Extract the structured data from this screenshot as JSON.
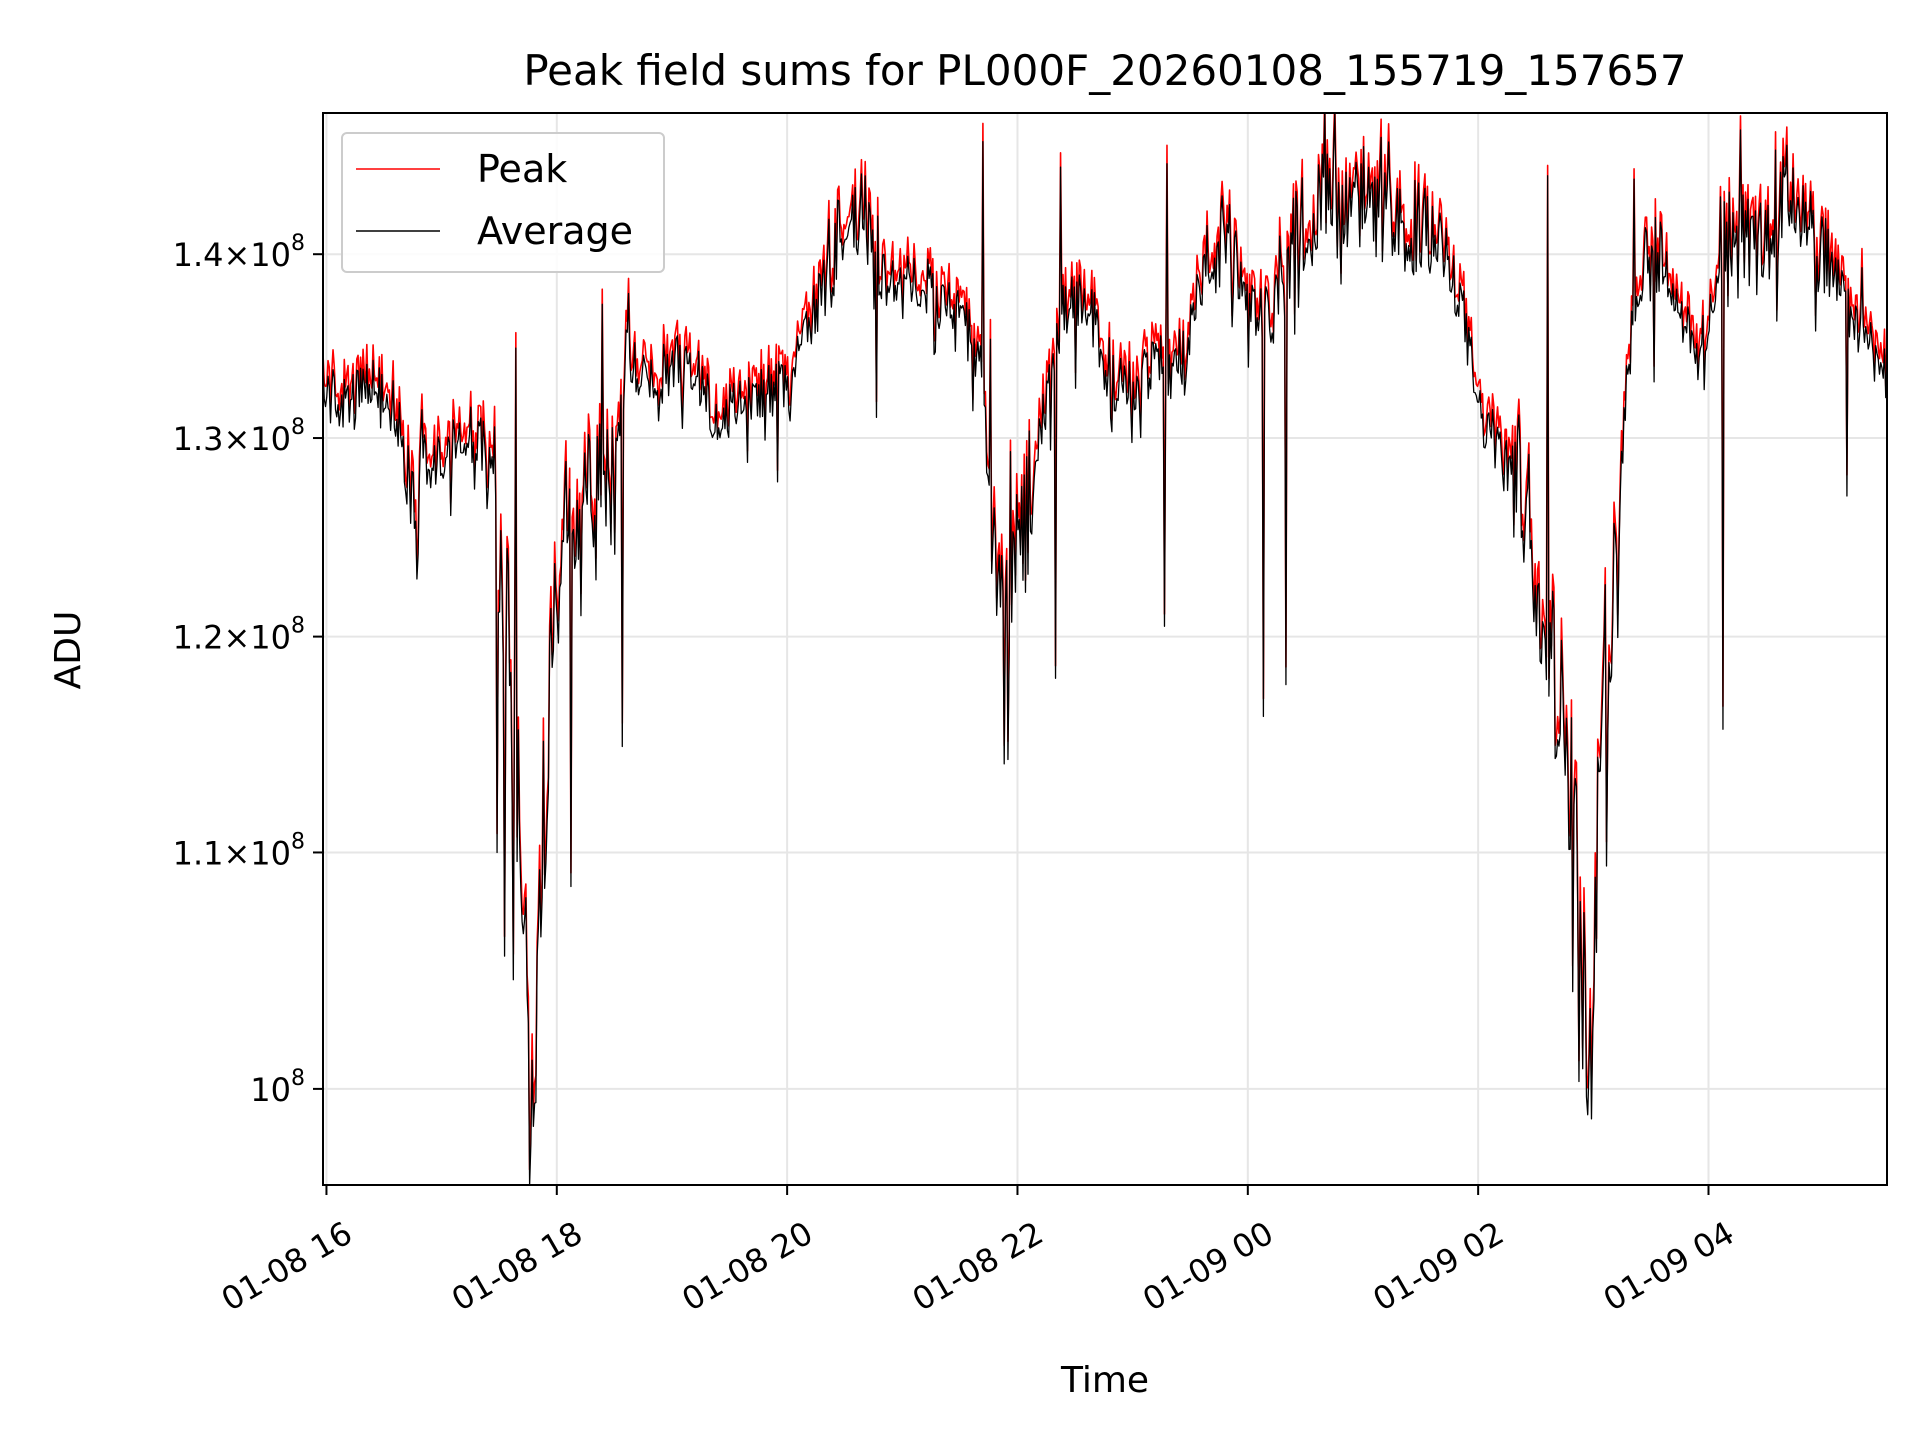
{
  "chart_data": {
    "type": "line",
    "title": "Peak field sums for PL000F_20260108_155719_157657",
    "xlabel": "Time",
    "ylabel": "ADU",
    "x_range_hours": [
      15.97,
      29.55
    ],
    "y_range": [
      96200000,
      148200000
    ],
    "y_scale": "log",
    "grid": true,
    "legend_position": "upper-left",
    "x_ticks": [
      {
        "hour": 16,
        "label": "01-08 16"
      },
      {
        "hour": 18,
        "label": "01-08 18"
      },
      {
        "hour": 20,
        "label": "01-08 20"
      },
      {
        "hour": 22,
        "label": "01-08 22"
      },
      {
        "hour": 24,
        "label": "01-09 00"
      },
      {
        "hour": 26,
        "label": "01-09 02"
      },
      {
        "hour": 28,
        "label": "01-09 04"
      }
    ],
    "y_ticks": [
      {
        "value": 100000000,
        "base": "10",
        "mant": "",
        "exp": "8"
      },
      {
        "value": 110000000,
        "base": "10",
        "mant": "1.1",
        "exp": "8"
      },
      {
        "value": 120000000,
        "base": "10",
        "mant": "1.2",
        "exp": "8"
      },
      {
        "value": 130000000,
        "base": "10",
        "mant": "1.3",
        "exp": "8"
      },
      {
        "value": 140000000,
        "base": "10",
        "mant": "1.4",
        "exp": "8"
      }
    ],
    "series": [
      {
        "name": "Peak",
        "color": "#ff0000",
        "offset": 600000
      },
      {
        "name": "Average",
        "color": "#000000",
        "offset": 0
      }
    ],
    "anchors_average": [
      [
        15.97,
        132.5
      ],
      [
        16.2,
        131.6
      ],
      [
        16.4,
        133.0
      ],
      [
        16.6,
        131.5
      ],
      [
        16.75,
        126.0
      ],
      [
        16.9,
        128.5
      ],
      [
        17.1,
        129.5
      ],
      [
        17.3,
        130.5
      ],
      [
        17.45,
        128.0
      ],
      [
        17.5,
        124.0
      ],
      [
        17.6,
        120.0
      ],
      [
        17.65,
        113.0
      ],
      [
        17.7,
        110.5
      ],
      [
        17.78,
        96.8
      ],
      [
        17.85,
        106.0
      ],
      [
        17.95,
        118.0
      ],
      [
        18.05,
        124.5
      ],
      [
        18.15,
        126.0
      ],
      [
        18.3,
        126.5
      ],
      [
        18.5,
        127.5
      ],
      [
        18.6,
        134.5
      ],
      [
        18.8,
        132.5
      ],
      [
        19.0,
        134.0
      ],
      [
        19.2,
        133.5
      ],
      [
        19.4,
        131.0
      ],
      [
        19.6,
        132.0
      ],
      [
        19.8,
        132.5
      ],
      [
        20.0,
        132.5
      ],
      [
        20.2,
        136.0
      ],
      [
        20.4,
        140.0
      ],
      [
        20.6,
        142.0
      ],
      [
        20.8,
        139.0
      ],
      [
        21.0,
        138.5
      ],
      [
        21.3,
        137.5
      ],
      [
        21.5,
        137.0
      ],
      [
        21.7,
        133.0
      ],
      [
        21.85,
        120.5
      ],
      [
        22.0,
        124.0
      ],
      [
        22.2,
        130.0
      ],
      [
        22.4,
        137.0
      ],
      [
        22.6,
        137.5
      ],
      [
        22.8,
        133.0
      ],
      [
        23.0,
        132.5
      ],
      [
        23.2,
        134.0
      ],
      [
        23.4,
        133.5
      ],
      [
        23.6,
        138.5
      ],
      [
        23.8,
        141.0
      ],
      [
        24.0,
        137.0
      ],
      [
        24.2,
        136.5
      ],
      [
        24.4,
        141.0
      ],
      [
        24.6,
        143.0
      ],
      [
        24.8,
        143.5
      ],
      [
        25.0,
        142.5
      ],
      [
        25.3,
        142.0
      ],
      [
        25.6,
        141.0
      ],
      [
        25.85,
        137.5
      ],
      [
        26.0,
        131.5
      ],
      [
        26.2,
        129.0
      ],
      [
        26.4,
        127.0
      ],
      [
        26.5,
        124.0
      ],
      [
        26.7,
        117.0
      ],
      [
        26.85,
        112.0
      ],
      [
        26.95,
        99.5
      ],
      [
        27.05,
        112.0
      ],
      [
        27.2,
        126.0
      ],
      [
        27.35,
        137.0
      ],
      [
        27.5,
        141.0
      ],
      [
        27.7,
        138.0
      ],
      [
        27.9,
        134.0
      ],
      [
        28.1,
        139.0
      ],
      [
        28.3,
        141.0
      ],
      [
        28.5,
        140.0
      ],
      [
        28.7,
        144.0
      ],
      [
        28.9,
        141.0
      ],
      [
        29.1,
        138.5
      ],
      [
        29.3,
        136.0
      ],
      [
        29.55,
        133.5
      ]
    ],
    "dips_average": [
      [
        17.48,
        110.0
      ],
      [
        17.55,
        105.5
      ],
      [
        17.62,
        104.5
      ],
      [
        17.76,
        96.2
      ],
      [
        17.8,
        98.5
      ],
      [
        17.83,
        105.5
      ],
      [
        18.12,
        108.5
      ],
      [
        18.57,
        114.8
      ],
      [
        21.92,
        114.2
      ],
      [
        21.88,
        114.0
      ],
      [
        22.33,
        118.0
      ],
      [
        23.28,
        120.5
      ],
      [
        24.13,
        116.2
      ],
      [
        24.33,
        117.7
      ],
      [
        26.82,
        104.0
      ],
      [
        26.88,
        100.3
      ],
      [
        26.98,
        98.8
      ],
      [
        27.11,
        109.4
      ],
      [
        28.13,
        115.6
      ],
      [
        29.2,
        127.0
      ]
    ],
    "peaks_average": [
      [
        17.64,
        134.8
      ],
      [
        18.4,
        137.2
      ],
      [
        18.62,
        137.8
      ],
      [
        20.65,
        144.6
      ],
      [
        21.7,
        146.5
      ],
      [
        22.37,
        145.0
      ],
      [
        23.3,
        145.2
      ],
      [
        24.76,
        148.2
      ],
      [
        25.0,
        146.2
      ],
      [
        26.6,
        144.5
      ],
      [
        27.35,
        144.3
      ],
      [
        28.58,
        146.0
      ]
    ]
  }
}
